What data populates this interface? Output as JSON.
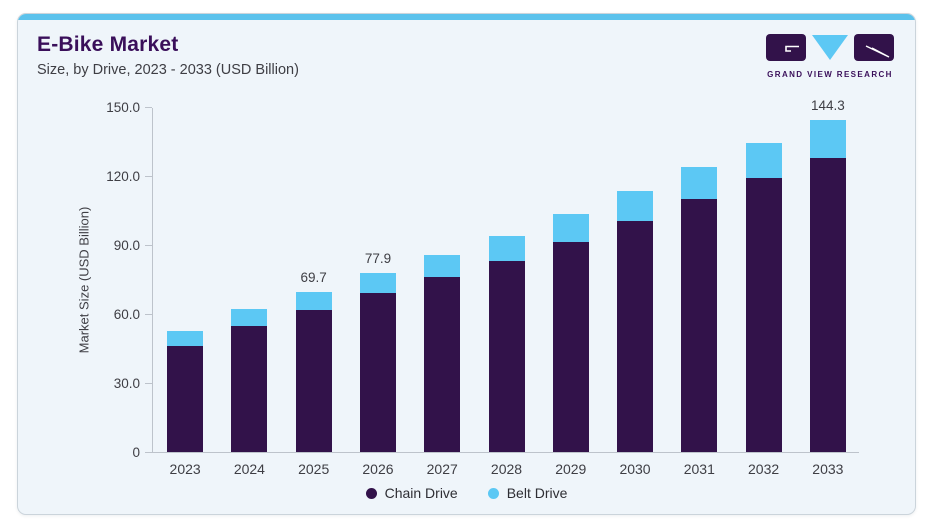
{
  "header": {
    "title": "E-Bike Market",
    "subtitle": "Size, by Drive, 2023 - 2033 (USD Billion)"
  },
  "logo": {
    "brand": "GRAND VIEW RESEARCH"
  },
  "colors": {
    "chain": "#32124a",
    "belt": "#5cc8f4",
    "accent": "#5bc2ec",
    "card_bg": "#eff5fa",
    "card_border": "#cbd4db",
    "title_color": "#3a0f5a",
    "text_dark": "#3e3e44",
    "axis": "#bdc3cb"
  },
  "chart_data": {
    "type": "bar",
    "stacked": true,
    "title": "E-Bike Market Size, by Drive, 2023 - 2033 (USD Billion)",
    "categories": [
      "2023",
      "2024",
      "2025",
      "2026",
      "2027",
      "2028",
      "2029",
      "2030",
      "2031",
      "2032",
      "2033"
    ],
    "series": [
      {
        "name": "Chain Drive",
        "color_key": "chain",
        "values": [
          46.3,
          55.0,
          61.9,
          69.3,
          76.0,
          83.2,
          91.5,
          100.6,
          109.8,
          119.0,
          128.0
        ]
      },
      {
        "name": "Belt Drive",
        "color_key": "belt",
        "values": [
          6.2,
          7.0,
          7.8,
          8.6,
          9.7,
          10.8,
          12.0,
          13.0,
          14.2,
          15.5,
          16.3
        ]
      }
    ],
    "totals": [
      52.5,
      62.0,
      69.7,
      77.9,
      85.7,
      94.0,
      103.5,
      113.6,
      124.0,
      134.5,
      144.3
    ],
    "bar_labels": [
      "",
      "",
      "69.7",
      "77.9",
      "",
      "",
      "",
      "",
      "",
      "",
      "144.3"
    ],
    "ylabel": "Market Size (USD Billion)",
    "ylim": [
      0,
      150
    ],
    "yticks": [
      {
        "label": "0",
        "value": 0
      },
      {
        "label": "30.0",
        "value": 30
      },
      {
        "label": "60.0",
        "value": 60
      },
      {
        "label": "90.0",
        "value": 90
      },
      {
        "label": "120.0",
        "value": 120
      },
      {
        "label": "150.0",
        "value": 150
      }
    ],
    "grid": false,
    "legend_position": "bottom",
    "legend": [
      "Chain Drive",
      "Belt Drive"
    ]
  }
}
